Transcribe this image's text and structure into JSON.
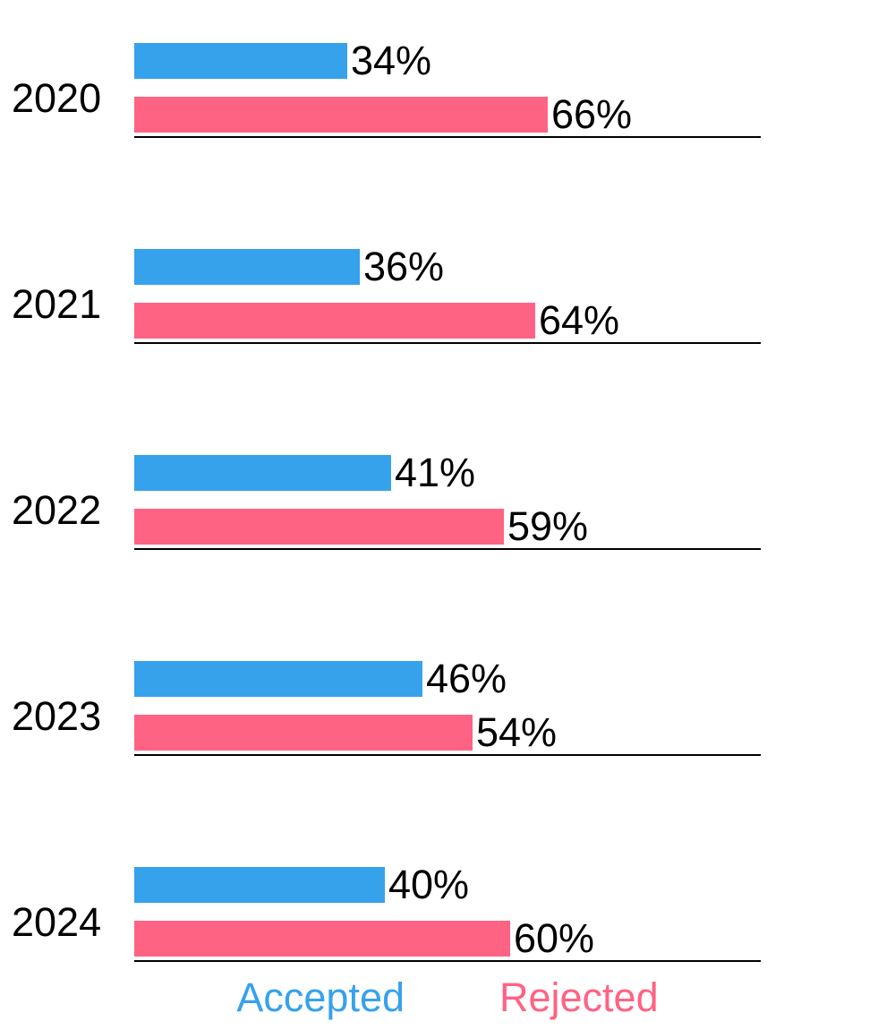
{
  "chart_data": {
    "type": "bar",
    "orientation": "horizontal",
    "title": "",
    "xlabel": "",
    "ylabel": "",
    "xlim": [
      0,
      100
    ],
    "grid": false,
    "legend_position": "bottom",
    "value_suffix": "%",
    "categories": [
      "2020",
      "2021",
      "2022",
      "2023",
      "2024"
    ],
    "series": [
      {
        "name": "Accepted",
        "color": "#36A2EB",
        "values": [
          34,
          36,
          41,
          46,
          40
        ]
      },
      {
        "name": "Rejected",
        "color": "#FF6384",
        "values": [
          66,
          64,
          59,
          54,
          60
        ]
      }
    ],
    "value_labels": {
      "Accepted": [
        "34%",
        "36%",
        "41%",
        "46%",
        "40%"
      ],
      "Rejected": [
        "66%",
        "64%",
        "59%",
        "54%",
        "60%"
      ]
    }
  },
  "legend": {
    "items": [
      {
        "label": "Accepted",
        "color": "#36A2EB"
      },
      {
        "label": "Rejected",
        "color": "#FF6384"
      }
    ]
  },
  "colors": {
    "accepted": "#36A2EB",
    "rejected": "#FF6384",
    "axis": "#000000",
    "text": "#000000",
    "background": "#FFFFFF"
  }
}
